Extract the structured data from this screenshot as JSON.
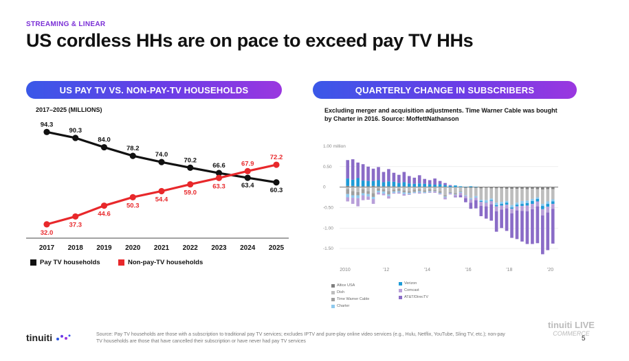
{
  "header": {
    "eyebrow": "STREAMING & LINEAR",
    "title": "US cordless HHs are on pace to exceed pay TV HHs"
  },
  "left_panel": {
    "pill": "US PAY TV VS.  NON-PAY-TV HOUSEHOLDS",
    "subtitle": "2017–2025 (MILLIONS)"
  },
  "right_panel": {
    "pill": "QUARTERLY CHANGE IN SUBSCRIBERS",
    "note": "Excluding merger and acquisition adjustments. Time Warner Cable was bought by Charter in 2016. Source: MoffettNathanson"
  },
  "colors": {
    "pay_tv": "#111111",
    "non_pay_tv": "#e8282b",
    "altice": "#7f7f7f",
    "dish": "#bdbdbd",
    "twc": "#9e9e9e",
    "charter": "#8ec9ee",
    "verizon": "#1e9bd7",
    "comcast": "#b89fd9",
    "att": "#8a6cc7"
  },
  "chart_data": [
    {
      "type": "line",
      "x": [
        "2017",
        "2018",
        "2019",
        "2020",
        "2021",
        "2022",
        "2023",
        "2024",
        "2025"
      ],
      "series": [
        {
          "name": "Pay TV households",
          "values": [
            94.3,
            90.3,
            84.0,
            78.2,
            74.0,
            70.2,
            66.6,
            63.4,
            60.3
          ],
          "labels": [
            "94.3",
            "90.3",
            "84.0",
            "78.2",
            "74.0",
            "70.2",
            "66.6",
            "63.4",
            "60.3"
          ]
        },
        {
          "name": "Non-pay-TV households",
          "values": [
            32.0,
            37.3,
            44.6,
            50.3,
            54.4,
            59.0,
            63.3,
            67.9,
            72.2
          ],
          "labels": [
            "32.0",
            "37.3",
            "44.6",
            "50.3",
            "54.4",
            "59.0",
            "63.3",
            "67.9",
            "72.2"
          ]
        }
      ],
      "ylim": [
        25,
        100
      ],
      "legend": "bottom-left"
    },
    {
      "type": "bar",
      "stacked": true,
      "ylabel": "1.00 million",
      "yticks": [
        "0.50",
        "0",
        "-0.50",
        "-1.00",
        "-1.50"
      ],
      "ytick_values": [
        0.5,
        0,
        -0.5,
        -1.0,
        -1.5
      ],
      "xticks": [
        "2010",
        "'12",
        "'14",
        "'16",
        "'18",
        "'20"
      ],
      "xtick_positions": [
        2010,
        2012,
        2014,
        2016,
        2018,
        2020
      ],
      "ylim": [
        -1.75,
        1.1
      ],
      "series": [
        {
          "name": "Altice USA",
          "values": [
            0.03,
            0.03,
            0.02,
            0.02,
            0.02,
            0.03,
            0.02,
            0.02,
            0.02,
            0.02,
            0.01,
            0.02,
            0.01,
            0.01,
            0.01,
            0.01,
            0.01,
            0.01,
            0.01,
            0.01,
            0.0,
            0.0,
            0.0,
            -0.02,
            -0.02,
            -0.02,
            -0.03,
            -0.02,
            -0.03,
            -0.03,
            -0.03,
            -0.04,
            -0.04,
            -0.04,
            -0.04,
            -0.05,
            -0.04,
            -0.05,
            -0.06,
            -0.05,
            -0.05
          ]
        },
        {
          "name": "Dish",
          "values": [
            -0.05,
            -0.1,
            -0.12,
            -0.05,
            -0.1,
            -0.15,
            -0.03,
            -0.05,
            -0.1,
            -0.06,
            -0.04,
            -0.08,
            -0.1,
            -0.06,
            -0.05,
            -0.08,
            -0.05,
            -0.07,
            -0.1,
            -0.2,
            -0.12,
            -0.15,
            -0.1,
            -0.18,
            -0.25,
            -0.2,
            -0.28,
            -0.3,
            -0.25,
            -0.35,
            -0.33,
            -0.3,
            -0.4,
            -0.34,
            -0.3,
            -0.28,
            -0.25,
            -0.2,
            -0.35,
            -0.3,
            -0.25
          ]
        },
        {
          "name": "Time Warner Cable",
          "values": [
            -0.12,
            -0.1,
            -0.08,
            -0.1,
            -0.07,
            -0.09,
            -0.06,
            -0.06,
            -0.08,
            -0.05,
            -0.06,
            -0.05,
            -0.04,
            -0.06,
            -0.05,
            -0.04,
            -0.05,
            -0.03,
            -0.04,
            -0.03,
            -0.02,
            -0.03,
            -0.02,
            0,
            0,
            0,
            0,
            0,
            0,
            0,
            0,
            0,
            0,
            0,
            0,
            0,
            0,
            0,
            0,
            0,
            0
          ]
        },
        {
          "name": "Charter",
          "values": [
            -0.08,
            -0.06,
            -0.07,
            -0.05,
            -0.06,
            -0.05,
            -0.04,
            -0.05,
            -0.04,
            -0.03,
            -0.03,
            -0.04,
            -0.03,
            -0.02,
            -0.03,
            -0.02,
            -0.02,
            -0.01,
            -0.02,
            -0.02,
            -0.01,
            -0.01,
            -0.02,
            -0.02,
            -0.03,
            -0.04,
            -0.03,
            -0.05,
            -0.04,
            -0.06,
            -0.05,
            -0.04,
            -0.06,
            -0.05,
            -0.07,
            -0.06,
            -0.05,
            -0.04,
            -0.05,
            -0.06,
            -0.05
          ]
        },
        {
          "name": "Verizon",
          "values": [
            0.18,
            0.15,
            0.2,
            0.14,
            0.13,
            0.12,
            0.15,
            0.1,
            0.12,
            0.11,
            0.09,
            0.1,
            0.08,
            0.07,
            0.08,
            0.07,
            0.06,
            0.05,
            0.06,
            0.04,
            0.03,
            0.04,
            0.02,
            0.01,
            0.02,
            0.01,
            -0.02,
            -0.01,
            -0.02,
            -0.03,
            -0.04,
            -0.05,
            -0.03,
            -0.04,
            -0.05,
            -0.06,
            -0.07,
            -0.06,
            -0.08,
            -0.07,
            -0.06
          ]
        },
        {
          "name": "Comcast",
          "values": [
            -0.1,
            -0.15,
            -0.2,
            -0.12,
            -0.08,
            -0.12,
            -0.05,
            -0.04,
            -0.06,
            -0.02,
            -0.03,
            -0.04,
            -0.02,
            -0.01,
            -0.03,
            -0.01,
            -0.02,
            -0.03,
            -0.02,
            -0.05,
            -0.03,
            -0.04,
            -0.06,
            -0.05,
            -0.08,
            -0.06,
            -0.1,
            -0.09,
            -0.08,
            -0.12,
            -0.1,
            -0.09,
            -0.11,
            -0.1,
            -0.12,
            -0.14,
            -0.13,
            -0.12,
            -0.15,
            -0.14,
            -0.12
          ]
        },
        {
          "name": "AT&T/DirecTV",
          "values": [
            0.45,
            0.5,
            0.38,
            0.4,
            0.35,
            0.3,
            0.32,
            0.25,
            0.3,
            0.22,
            0.2,
            0.25,
            0.18,
            0.15,
            0.2,
            0.12,
            0.1,
            0.15,
            0.08,
            0.05,
            0.02,
            -0.02,
            -0.05,
            -0.1,
            -0.15,
            -0.2,
            -0.25,
            -0.3,
            -0.4,
            -0.5,
            -0.45,
            -0.55,
            -0.6,
            -0.7,
            -0.75,
            -0.8,
            -0.85,
            -0.9,
            -0.95,
            -0.92,
            -0.85
          ]
        }
      ],
      "x_start_year": 2010,
      "legend": "bottom"
    }
  ],
  "footer": {
    "logo": "tinuiti",
    "footnote": "Source: Pay TV households are those with a subscription to traditional pay TV services; excludes IPTV and pure-play online video services (e.g., Hulu, Netflix, YouTube, Sling TV, etc.); non-pay TV households are those that have cancelled their subscription or have never had pay TV services",
    "badge_line1": "tinuiti LIVE",
    "badge_line2": "COMMERCE",
    "page": "5"
  }
}
